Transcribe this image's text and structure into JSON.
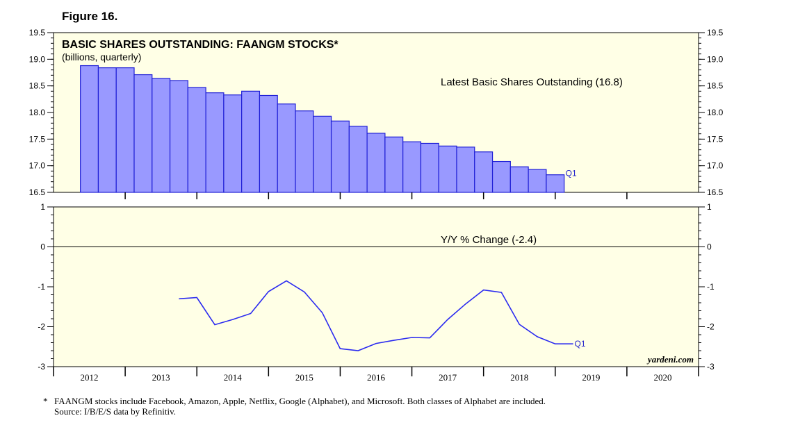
{
  "figure_label": "Figure 16.",
  "footnote": {
    "marker": "*",
    "line1": "FAANGM stocks include Facebook, Amazon, Apple, Netflix, Google (Alphabet), and Microsoft. Both classes of Alphabet are included.",
    "line2": "Source: I/B/E/S data by Refinitiv."
  },
  "watermark": "yardeni.com",
  "colors": {
    "panel_bg": "#ffffe6",
    "bar_fill": "#9999ff",
    "bar_edge": "#1f1fd6",
    "line": "#2a2af0"
  },
  "chart_data": [
    {
      "type": "bar",
      "title": "BASIC SHARES OUTSTANDING: FAANGM STOCKS*",
      "subtitle": "(billions, quarterly)",
      "annotation": "Latest Basic Shares Outstanding (16.8)",
      "end_label": "Q1",
      "ylim": [
        16.5,
        19.5
      ],
      "yticks": [
        "19.5",
        "19.0",
        "18.5",
        "18.0",
        "17.5",
        "17.0",
        "16.5"
      ],
      "x_start": 2012.5,
      "x_step": 0.25,
      "values": [
        18.88,
        18.84,
        18.84,
        18.71,
        18.64,
        18.6,
        18.47,
        18.37,
        18.33,
        18.4,
        18.32,
        18.16,
        18.03,
        17.93,
        17.84,
        17.74,
        17.61,
        17.54,
        17.45,
        17.42,
        17.37,
        17.35,
        17.26,
        17.08,
        16.98,
        16.93,
        16.83
      ],
      "xlim": [
        2012,
        2021
      ]
    },
    {
      "type": "line",
      "annotation": "Y/Y % Change (-2.4)",
      "end_label": "Q1",
      "ylim": [
        -3,
        1
      ],
      "yticks": [
        "1",
        "0",
        "-1",
        "-2",
        "-3"
      ],
      "x_start": 2013.75,
      "x_step": 0.25,
      "values": [
        -1.3,
        -1.27,
        -1.95,
        -1.82,
        -1.67,
        -1.12,
        -0.85,
        -1.13,
        -1.65,
        -2.55,
        -2.6,
        -2.42,
        -2.34,
        -2.27,
        -2.28,
        -1.82,
        -1.43,
        -1.08,
        -1.14,
        -1.94,
        -2.25,
        -2.43,
        -2.43
      ],
      "xlim": [
        2012,
        2021
      ]
    }
  ],
  "x_axis": {
    "year_labels": [
      "2012",
      "2013",
      "2014",
      "2015",
      "2016",
      "2017",
      "2018",
      "2019",
      "2020"
    ]
  }
}
